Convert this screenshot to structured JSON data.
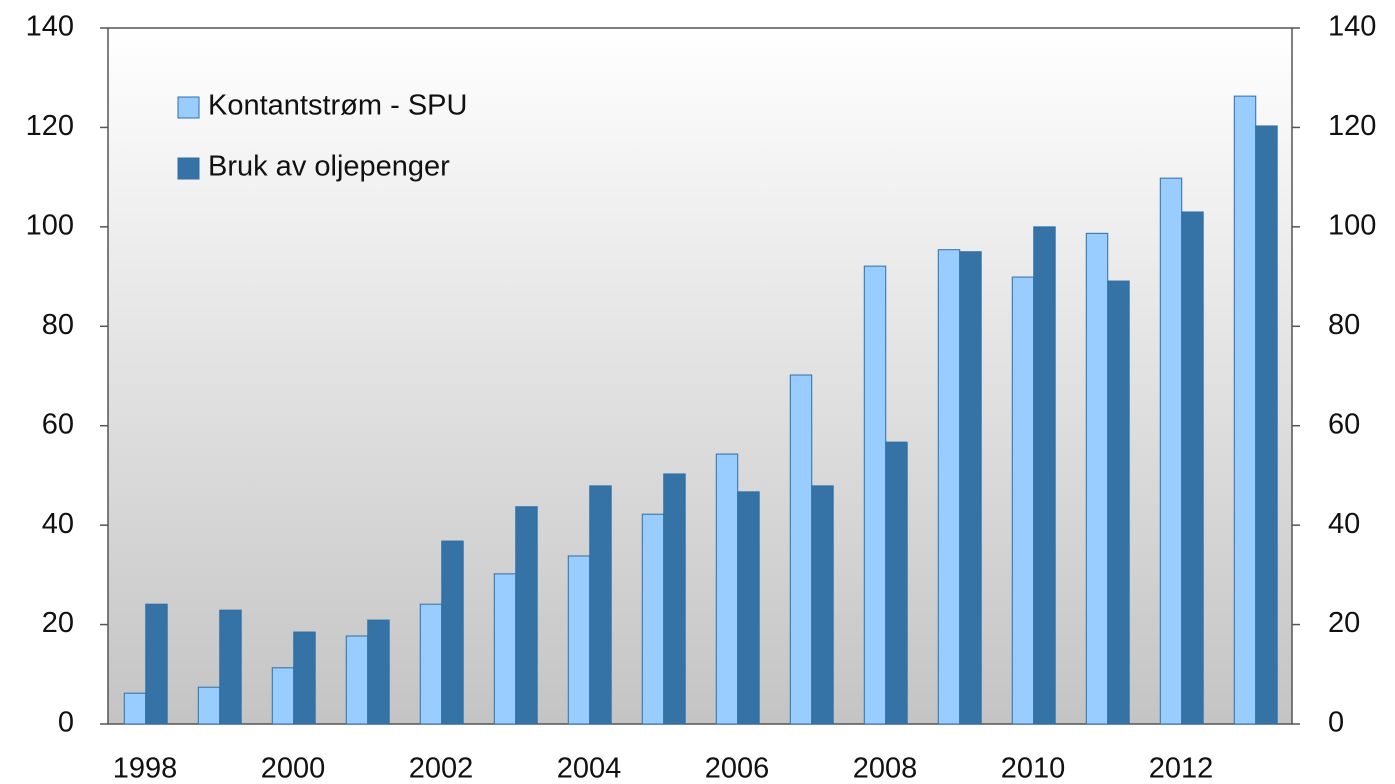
{
  "chart_data": {
    "type": "bar",
    "categories": [
      "1998",
      null,
      "2000",
      null,
      "2002",
      null,
      "2004",
      null,
      "2006",
      null,
      "2008",
      null,
      "2010",
      null,
      "2012",
      null
    ],
    "series": [
      {
        "name": "Kontantstrøm - SPU",
        "color": "#99ccff",
        "values": [
          6.2,
          7.4,
          11.3,
          17.7,
          24.1,
          30.2,
          33.8,
          42.2,
          54.3,
          70.2,
          92.1,
          95.4,
          89.9,
          98.7,
          109.8,
          126.3
        ]
      },
      {
        "name": "Bruk av oljepenger",
        "color": "#3572a6",
        "values": [
          24.1,
          22.9,
          18.5,
          20.9,
          36.8,
          43.7,
          47.9,
          50.3,
          46.7,
          47.9,
          56.7,
          95.0,
          100.0,
          89.1,
          103.0,
          120.3
        ]
      }
    ],
    "ylim": [
      0,
      140
    ],
    "yticks": [
      0,
      20,
      40,
      60,
      80,
      100,
      120,
      140
    ],
    "y2lim": [
      0,
      140
    ],
    "y2ticks": [
      0,
      20,
      40,
      60,
      80,
      100,
      120,
      140
    ],
    "legend": "upper left"
  }
}
